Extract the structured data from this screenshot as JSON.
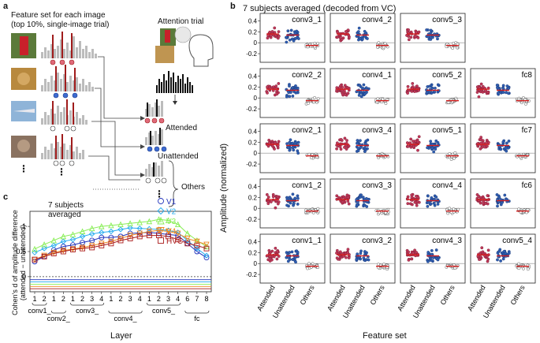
{
  "panel_a": {
    "label": "a",
    "title_line1": "Feature set for each image",
    "title_line2": "(top 10%, single-image trial)",
    "attention_trial": "Attention trial",
    "attended": "Attended",
    "unattended": "Unattended",
    "others": "Others",
    "ellipsis": "⋮"
  },
  "panel_b": {
    "label": "b",
    "title": "7 subjects averaged (decoded from VC)",
    "y_axis_label": "Amplitude (normalized)",
    "x_axis_label": "Feature set",
    "x_categories": [
      "Attended",
      "Unattended",
      "Others"
    ],
    "y_ticks": [
      "0.4",
      "0.2",
      "0",
      "-0.2"
    ],
    "rows": [
      [
        "conv3_1",
        "conv4_2",
        "conv5_3",
        ""
      ],
      [
        "conv2_2",
        "conv4_1",
        "conv5_2",
        "fc8"
      ],
      [
        "conv2_1",
        "conv3_4",
        "conv5_1",
        "fc7"
      ],
      [
        "conv1_2",
        "conv3_3",
        "conv4_4",
        "fc6"
      ],
      [
        "conv1_1",
        "conv3_2",
        "conv4_3",
        "conv5_4"
      ]
    ],
    "colors": {
      "attended": "#c0395a",
      "unattended": "#2f5fb3",
      "others": "#ffffff",
      "median": "#d62020"
    }
  },
  "panel_c": {
    "label": "c",
    "note_line1": "7 subjects",
    "note_line2": "averaged",
    "y_axis_label": "Cohen's d of amplitude difference (attended − unattended)",
    "x_axis_label": "Layer",
    "layer_groups": [
      "conv1_",
      "conv2_",
      "conv3_",
      "conv4_",
      "conv5_",
      "fc"
    ]
  },
  "chart_data": {
    "type": "line",
    "title": "7 subjects averaged",
    "xlabel": "Layer",
    "ylabel": "Cohen's d of amplitude difference (attended − unattended)",
    "categories": [
      "1",
      "2",
      "1",
      "2",
      "1",
      "2",
      "3",
      "4",
      "1",
      "2",
      "3",
      "4",
      "1",
      "2",
      "3",
      "4",
      "6",
      "7",
      "8"
    ],
    "ylim": [
      -0.3,
      1.3
    ],
    "y_ticks": [
      1,
      0.5,
      0
    ],
    "series": [
      {
        "name": "V1",
        "color": "#2233bb",
        "marker": "circle",
        "values": [
          0.3,
          0.4,
          0.53,
          0.6,
          0.63,
          0.68,
          0.72,
          0.78,
          0.78,
          0.8,
          0.86,
          0.87,
          0.88,
          0.86,
          0.84,
          0.82,
          0.66,
          0.5,
          0.38
        ]
      },
      {
        "name": "V2",
        "color": "#22aaee",
        "marker": "diamond",
        "values": [
          0.48,
          0.56,
          0.62,
          0.7,
          0.74,
          0.8,
          0.85,
          0.88,
          0.9,
          0.94,
          0.97,
          0.96,
          0.95,
          0.94,
          0.92,
          0.88,
          0.72,
          0.56,
          0.42
        ]
      },
      {
        "name": "V3",
        "color": "#88ee55",
        "marker": "triangle",
        "values": [
          0.55,
          0.64,
          0.72,
          0.8,
          0.84,
          0.9,
          0.96,
          1.0,
          1.02,
          1.04,
          1.06,
          1.08,
          1.1,
          1.14,
          1.12,
          1.04,
          0.86,
          0.72,
          0.6
        ]
      },
      {
        "name": "V4",
        "color": "#ee8822",
        "marker": "triangle-down",
        "values": [
          0.34,
          0.42,
          0.48,
          0.52,
          0.55,
          0.58,
          0.62,
          0.66,
          0.7,
          0.76,
          0.82,
          0.86,
          0.9,
          0.92,
          0.9,
          0.86,
          0.76,
          0.7,
          0.64
        ]
      },
      {
        "name": "HVC",
        "color": "#aa1a1a",
        "marker": "square",
        "values": [
          0.34,
          0.4,
          0.46,
          0.5,
          0.54,
          0.56,
          0.58,
          0.62,
          0.66,
          0.72,
          0.76,
          0.8,
          0.82,
          0.82,
          0.8,
          0.74,
          0.66,
          0.62,
          0.56
        ]
      }
    ]
  }
}
